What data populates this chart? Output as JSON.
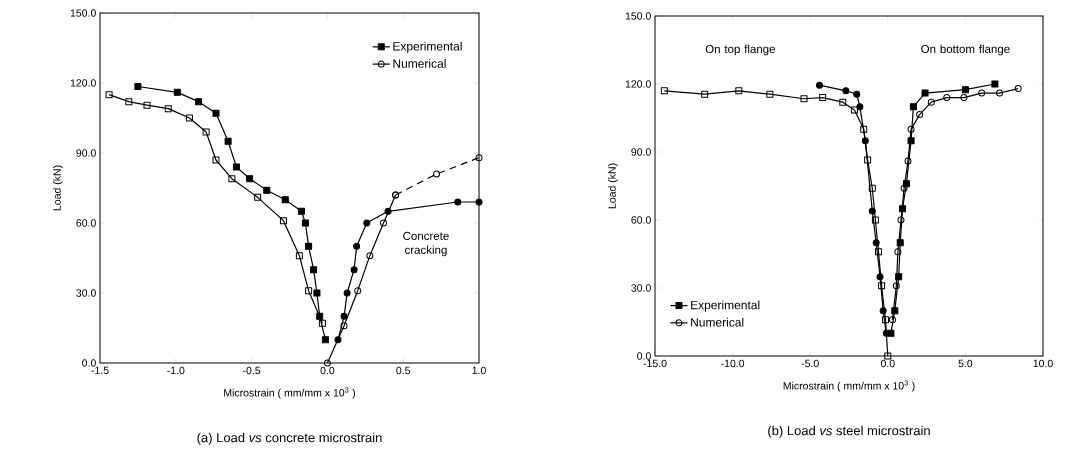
{
  "chart_data": [
    {
      "type": "line",
      "title": "(a) Load *vs* concrete microstrain",
      "xlabel": "Microstrain ( mm/mm x 10$^{3}$ )",
      "ylabel": "Load (kN)",
      "xlim": [
        -1.5,
        1.0
      ],
      "ylim": [
        0,
        150
      ],
      "xticks": [
        {
          "value": -1.5,
          "label": "-1.5"
        },
        {
          "value": -1.0,
          "label": "-1.0"
        },
        {
          "value": -0.5,
          "label": "-0.5"
        },
        {
          "value": 0,
          "label": "0.0"
        },
        {
          "value": 0.5,
          "label": "0.5"
        },
        {
          "value": 1.0,
          "label": "1.0"
        }
      ],
      "yticks": [
        {
          "value": 0,
          "label": "0.0"
        },
        {
          "value": 30,
          "label": "30.0"
        },
        {
          "value": 60,
          "label": "60.0"
        },
        {
          "value": 90,
          "label": "90.0"
        },
        {
          "value": 120,
          "label": "120.0"
        },
        {
          "value": 150,
          "label": "150.0"
        }
      ],
      "legend": "top right",
      "grid": false,
      "line_style": "solid",
      "annotations": [
        "Concrete cracking"
      ],
      "series": [
        {
          "name": "Experimental",
          "color": "#000000",
          "marker": "square*",
          "x": [
            -1.25,
            -0.99,
            -0.85,
            -0.735,
            -0.655,
            -0.6,
            -0.513,
            -0.4,
            -0.278,
            -0.171,
            -0.145,
            -0.124,
            -0.091,
            -0.069,
            -0.051,
            -0.013
          ],
          "values": [
            118.5,
            116,
            112,
            107,
            95,
            84,
            79,
            74,
            70,
            65,
            60,
            50,
            40,
            30,
            20,
            10
          ]
        },
        {
          "color": "#000000",
          "marker": "circle*",
          "x": [
            0.07,
            0.11,
            0.13,
            0.176,
            0.193,
            0.26,
            0.4,
            0.86,
            1.0
          ],
          "values": [
            10,
            20,
            30,
            40,
            50,
            60,
            65,
            69,
            69
          ]
        },
        {
          "name": "Numerical",
          "color": "#000000",
          "marker": "circle",
          "x": [
            0,
            0.11,
            0.2,
            0.28,
            0.37,
            0.45
          ],
          "values": [
            0,
            16,
            31,
            46,
            60,
            72
          ]
        },
        {
          "color": "#000000",
          "marker": "square",
          "x": [
            -1.44,
            -1.31,
            -1.19,
            -1.05,
            -0.91,
            -0.8,
            -0.735,
            -0.63,
            -0.46,
            -0.29,
            -0.185,
            -0.124,
            -0.033
          ],
          "values": [
            115,
            112,
            110.5,
            109,
            105,
            99,
            87,
            79,
            71,
            61,
            46,
            31,
            17
          ]
        },
        {
          "color": "#000000",
          "marker": "circle",
          "line_style": "dashed",
          "x": [
            0.45,
            0.72,
            1.0
          ],
          "values": [
            72,
            81,
            88
          ]
        }
      ]
    },
    {
      "type": "line",
      "title": "(b) Load *vs* steel microstrain",
      "xlabel": "Microstrain ( mm/mm x 10$^{3}$ )",
      "ylabel": "Load (kN)",
      "xlim": [
        -15,
        10
      ],
      "ylim": [
        0,
        150
      ],
      "xticks": [
        {
          "value": -15,
          "label": "-15.0"
        },
        {
          "value": -10,
          "label": "-10.0"
        },
        {
          "value": -5,
          "label": "-5.0"
        },
        {
          "value": 0,
          "label": "0.0"
        },
        {
          "value": 5,
          "label": "5.0"
        },
        {
          "value": 10,
          "label": "10.0"
        }
      ],
      "yticks": [
        {
          "value": 0,
          "label": "0.0"
        },
        {
          "value": 30,
          "label": "30.0"
        },
        {
          "value": 60,
          "label": "60.0"
        },
        {
          "value": 90,
          "label": "90.0"
        },
        {
          "value": 120,
          "label": "120.0"
        },
        {
          "value": 150,
          "label": "150.0"
        }
      ],
      "legend": "bottom left",
      "grid": false,
      "line_style": "solid",
      "annotations": [
        "On top flange",
        "On bottom flange"
      ],
      "series": [
        {
          "name": "Experimental",
          "color": "#000000",
          "marker": "square*",
          "x": [
            0.2,
            0.45,
            0.7,
            0.8,
            0.95,
            1.2,
            1.5,
            1.65,
            2.4,
            5.0,
            6.9
          ],
          "values": [
            10,
            20,
            35,
            50,
            65,
            76,
            95,
            110,
            116,
            117.5,
            120
          ]
        },
        {
          "color": "#000000",
          "marker": "circle*",
          "x": [
            -4.4,
            -2.7,
            -2.0,
            -1.8,
            -1.45,
            -1.0,
            -0.75,
            -0.5,
            -0.3,
            -0.1
          ],
          "values": [
            119.5,
            117,
            115.5,
            110,
            95,
            64,
            50,
            35,
            20,
            10
          ]
        },
        {
          "name": "Numerical",
          "color": "#000000",
          "marker": "circle",
          "x": [
            0.3,
            0.55,
            0.65,
            0.85,
            1.05,
            1.3,
            1.5,
            2.05,
            2.8,
            3.8,
            4.9,
            6.05,
            7.2,
            8.4
          ],
          "values": [
            16,
            31,
            46,
            60,
            74,
            86,
            100,
            106.5,
            112,
            114,
            114,
            116,
            116,
            118
          ]
        },
        {
          "color": "#000000",
          "marker": "square",
          "x": [
            -14.4,
            -11.8,
            -9.6,
            -7.6,
            -5.4,
            -4.2,
            -2.9,
            -2.15,
            -1.55,
            -1.3,
            -1.0,
            -0.8,
            -0.6,
            -0.4,
            -0.15,
            0
          ],
          "values": [
            117,
            115.5,
            117,
            115.5,
            113.5,
            114,
            112,
            108.5,
            100,
            86.5,
            74,
            60,
            46,
            31,
            16,
            0
          ]
        }
      ]
    }
  ]
}
